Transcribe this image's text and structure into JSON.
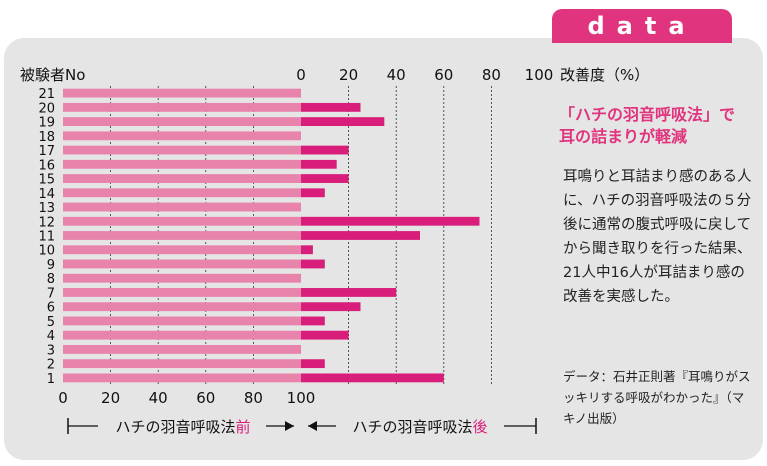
{
  "theme": {
    "accent": "#e0357e",
    "bar_before": "#e883ab",
    "bar_after": "#d81e7a",
    "panel": "#e5e5e5"
  },
  "header_tab": {
    "label": "data"
  },
  "sidebar": {
    "heading_line1": "「ハチの羽音呼吸法」で",
    "heading_line2": "耳の詰まりが軽減",
    "body": "耳鳴りと耳詰まり感のある人に、ハチの羽音呼吸法の５分後に通常の腹式呼吸に戻してから聞き取りを行った結果、21人中16人が耳詰まり感の改善を実感した。",
    "source": "データ：石井正則著『耳鳴りがスッキリする呼吸がわかった』（マキノ出版）"
  },
  "chart_data": [
    {
      "type": "bar",
      "orientation": "horizontal",
      "title": "",
      "ylabel": "被験者No",
      "categories": [
        "21",
        "20",
        "19",
        "18",
        "17",
        "16",
        "15",
        "14",
        "13",
        "12",
        "11",
        "10",
        "9",
        "8",
        "7",
        "6",
        "5",
        "4",
        "3",
        "2",
        "1"
      ],
      "values": [
        100,
        100,
        100,
        100,
        100,
        100,
        100,
        100,
        100,
        100,
        100,
        100,
        100,
        100,
        100,
        100,
        100,
        100,
        100,
        100,
        100
      ],
      "xlim": [
        0,
        100
      ],
      "xticks": [
        "0",
        "20",
        "40",
        "60",
        "80",
        "100"
      ],
      "grid": true,
      "xlabel_parts": [
        "ハチの羽音呼吸法",
        "前"
      ]
    },
    {
      "type": "bar",
      "orientation": "horizontal",
      "title": "",
      "xlabel_top": "改善度（%）",
      "categories": [
        "21",
        "20",
        "19",
        "18",
        "17",
        "16",
        "15",
        "14",
        "13",
        "12",
        "11",
        "10",
        "9",
        "8",
        "7",
        "6",
        "5",
        "4",
        "3",
        "2",
        "1"
      ],
      "values": [
        0,
        25,
        35,
        0,
        20,
        15,
        20,
        10,
        0,
        75,
        50,
        5,
        10,
        0,
        40,
        25,
        10,
        20,
        0,
        10,
        60
      ],
      "xlim": [
        0,
        100
      ],
      "xticks": [
        "0",
        "20",
        "40",
        "60",
        "80",
        "100"
      ],
      "grid": true,
      "xlabel_parts": [
        "ハチの羽音呼吸法",
        "後"
      ]
    }
  ]
}
